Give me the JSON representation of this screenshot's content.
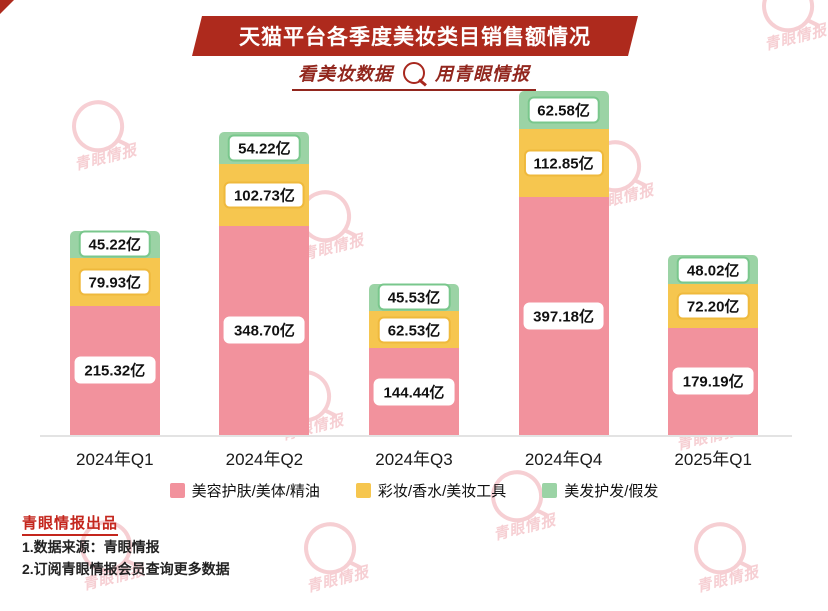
{
  "title": "天猫平台各季度美妆类目销售额情况",
  "subtitle": {
    "left": "看美妆数据",
    "right": "用青眼情报"
  },
  "chart_data": {
    "type": "bar",
    "stacked": true,
    "unit": "亿",
    "categories": [
      "2024年Q1",
      "2024年Q2",
      "2024年Q3",
      "2024年Q4",
      "2025年Q1"
    ],
    "series": [
      {
        "name": "美容护肤/美体/精油",
        "color": "#F2929D",
        "label_border": "#FFFFFF",
        "values": [
          215.32,
          348.7,
          144.44,
          397.18,
          179.19
        ]
      },
      {
        "name": "彩妆/香水/美妆工具",
        "color": "#F6C64F",
        "label_border": "#EFB93C",
        "values": [
          79.93,
          102.73,
          62.53,
          112.85,
          72.2
        ]
      },
      {
        "name": "美发护发/假发",
        "color": "#9BD3A5",
        "label_border": "#79C78C",
        "values": [
          45.22,
          54.22,
          45.53,
          62.58,
          48.02
        ]
      }
    ],
    "ylim": [
      0,
      600
    ],
    "value_label_format": "{value}亿",
    "legend_position": "bottom",
    "grid": false
  },
  "footer": {
    "brand": "青眼情报出品",
    "line1": "1.数据来源：青眼情报",
    "line2": "2.订阅青眼情报会员查询更多数据"
  },
  "watermark_text": "青眼情报",
  "colors": {
    "banner_red": "#AE2A1D",
    "subtitle_red": "#92271E",
    "footer_red": "#C4261D",
    "watermark_pink": "#F0A8B0"
  }
}
